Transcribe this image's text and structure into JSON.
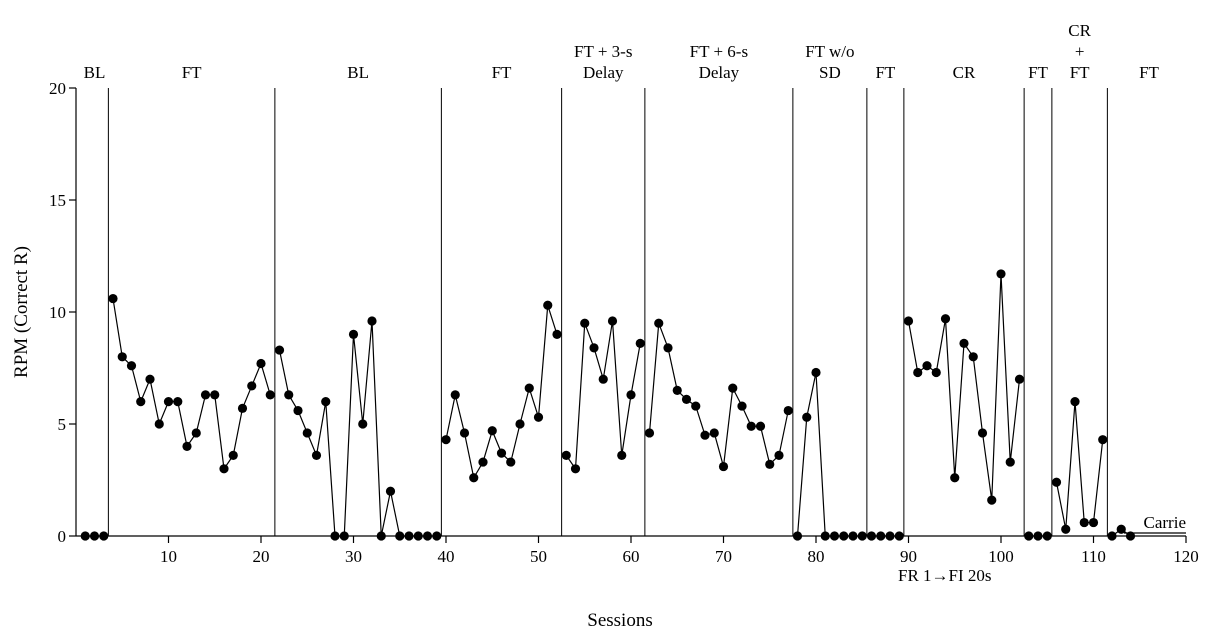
{
  "chart_data": {
    "type": "line",
    "title": "",
    "xlabel": "Sessions",
    "ylabel": "RPM (Correct R)",
    "xlim": [
      0,
      120
    ],
    "ylim": [
      0,
      20
    ],
    "xticks": [
      10,
      20,
      30,
      40,
      50,
      60,
      70,
      80,
      90,
      100,
      110,
      120
    ],
    "yticks": [
      0,
      5,
      10,
      15,
      20
    ],
    "grid": false,
    "participant": "Carrie",
    "annotation": "FR 1→FI 20s",
    "phase_changes": [
      3.5,
      21.5,
      39.5,
      52.5,
      61.5,
      77.5,
      85.5,
      89.5,
      102.5,
      105.5,
      111.5
    ],
    "phases": [
      {
        "lines": [
          "BL"
        ],
        "x": 2
      },
      {
        "lines": [
          "FT"
        ],
        "x": 12.5
      },
      {
        "lines": [
          "BL"
        ],
        "x": 30.5
      },
      {
        "lines": [
          "FT"
        ],
        "x": 46
      },
      {
        "lines": [
          "FT + 3-s",
          "Delay"
        ],
        "x": 57
      },
      {
        "lines": [
          "FT + 6-s",
          "Delay"
        ],
        "x": 69.5
      },
      {
        "lines": [
          "FT w/o",
          "SD"
        ],
        "x": 81.5
      },
      {
        "lines": [
          "FT"
        ],
        "x": 87.5
      },
      {
        "lines": [
          "CR"
        ],
        "x": 96
      },
      {
        "lines": [
          "FT"
        ],
        "x": 104
      },
      {
        "lines": [
          "CR",
          "+",
          "FT"
        ],
        "x": 108.5
      },
      {
        "lines": [
          "FT"
        ],
        "x": 116
      }
    ],
    "segments": [
      {
        "x": [
          1,
          2,
          3
        ],
        "y": [
          0,
          0,
          0
        ]
      },
      {
        "x": [
          4,
          5,
          6,
          7,
          8,
          9,
          10,
          11,
          12,
          13,
          14,
          15,
          16,
          17,
          18,
          19,
          20,
          21
        ],
        "y": [
          10.6,
          8.0,
          7.6,
          6.0,
          7.0,
          5.0,
          6.0,
          6.0,
          4.0,
          4.6,
          6.3,
          6.3,
          3.0,
          3.6,
          5.7,
          6.7,
          7.7,
          6.3
        ]
      },
      {
        "x": [
          22,
          23,
          24,
          25,
          26,
          27,
          28,
          29,
          30,
          31,
          32,
          33,
          34,
          35,
          36,
          37,
          38,
          39
        ],
        "y": [
          8.3,
          6.3,
          5.6,
          4.6,
          3.6,
          6.0,
          0,
          0,
          9.0,
          5.0,
          9.6,
          0,
          2.0,
          0,
          0,
          0,
          0,
          0
        ]
      },
      {
        "x": [
          40,
          41,
          42,
          43,
          44,
          45,
          46,
          47,
          48,
          49,
          50,
          51,
          52
        ],
        "y": [
          4.3,
          6.3,
          4.6,
          2.6,
          3.3,
          4.7,
          3.7,
          3.3,
          5.0,
          6.6,
          5.3,
          10.3,
          9.0
        ]
      },
      {
        "x": [
          53,
          54,
          55,
          56,
          57,
          58,
          59,
          60,
          61
        ],
        "y": [
          3.6,
          3.0,
          9.5,
          8.4,
          7.0,
          9.6,
          3.6,
          6.3,
          8.6
        ]
      },
      {
        "x": [
          62,
          63,
          64,
          65,
          66,
          67,
          68,
          69,
          70,
          71,
          72,
          73,
          74,
          75,
          76,
          77
        ],
        "y": [
          4.6,
          9.5,
          8.4,
          6.5,
          6.1,
          5.8,
          4.5,
          4.6,
          3.1,
          6.6,
          5.8,
          4.9,
          4.9,
          3.2,
          3.6,
          5.6
        ]
      },
      {
        "x": [
          78,
          79,
          80,
          81,
          82,
          83,
          84,
          85
        ],
        "y": [
          0,
          5.3,
          7.3,
          0,
          0,
          0,
          0,
          0
        ]
      },
      {
        "x": [
          86,
          87,
          88,
          89
        ],
        "y": [
          0,
          0,
          0,
          0
        ]
      },
      {
        "x": [
          90,
          91,
          92,
          93,
          94,
          95,
          96,
          97,
          98,
          99,
          100,
          101,
          102
        ],
        "y": [
          9.6,
          7.3,
          7.6,
          7.3,
          9.7,
          2.6,
          8.6,
          8.0,
          4.6,
          1.6,
          11.7,
          3.3,
          7.0
        ]
      },
      {
        "x": [
          103,
          104,
          105
        ],
        "y": [
          0,
          0,
          0
        ]
      },
      {
        "x": [
          106,
          107,
          108,
          109,
          110,
          111
        ],
        "y": [
          2.4,
          0.3,
          6.0,
          0.6,
          0.6,
          4.3
        ]
      },
      {
        "x": [
          112,
          113,
          114
        ],
        "y": [
          0,
          0.3,
          0
        ]
      }
    ]
  }
}
